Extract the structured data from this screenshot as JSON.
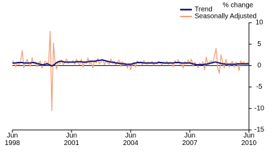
{
  "chart_data": {
    "type": "line",
    "y_label": "% change",
    "categories": [
      "Jun 1998",
      null,
      null,
      null,
      null,
      null,
      null,
      null,
      null,
      null,
      null,
      null,
      null,
      null,
      null,
      null,
      null,
      null,
      null,
      null,
      null,
      null,
      null,
      null,
      null,
      null,
      null,
      null,
      null,
      null,
      null,
      null,
      null,
      null,
      null,
      null,
      "Jun 2001",
      null,
      null,
      null,
      null,
      null,
      null,
      null,
      null,
      null,
      null,
      null,
      null,
      null,
      null,
      null,
      null,
      null,
      null,
      null,
      null,
      null,
      null,
      null,
      null,
      null,
      null,
      null,
      null,
      null,
      null,
      null,
      null,
      null,
      null,
      null,
      "Jun 2004",
      null,
      null,
      null,
      null,
      null,
      null,
      null,
      null,
      null,
      null,
      null,
      null,
      null,
      null,
      null,
      null,
      null,
      null,
      null,
      null,
      null,
      null,
      null,
      null,
      null,
      null,
      null,
      null,
      null,
      null,
      null,
      null,
      null,
      null,
      null,
      "Jun 2007",
      null,
      null,
      null,
      null,
      null,
      null,
      null,
      null,
      null,
      null,
      null,
      null,
      null,
      null,
      null,
      null,
      null,
      null,
      null,
      null,
      null,
      null,
      null,
      null,
      null,
      null,
      null,
      null,
      null,
      null,
      null,
      null,
      null,
      null,
      null,
      "Jun 2010"
    ],
    "series": [
      {
        "name": "Seasonally Adjusted",
        "color": "#f4a07a",
        "values": [
          1.2,
          0.5,
          -0.3,
          0.8,
          0.2,
          1.0,
          3.5,
          -0.5,
          0.6,
          1.5,
          0.3,
          -0.2,
          1.8,
          0.4,
          0.9,
          -0.3,
          0.5,
          1.1,
          -0.6,
          0.2,
          1.0,
          0.8,
          0.1,
          8.0,
          -10.5,
          5.2,
          0.6,
          -0.8,
          1.0,
          0.4,
          1.3,
          0.2,
          0.8,
          1.6,
          0.5,
          0.9,
          0.7,
          1.2,
          0.3,
          1.5,
          0.6,
          0.2,
          1.4,
          -0.4,
          1.0,
          0.5,
          1.8,
          0.3,
          0.9,
          -0.5,
          1.2,
          0.6,
          1.7,
          0.4,
          0.8,
          1.5,
          0.2,
          1.1,
          0.7,
          0.3,
          1.6,
          0.5,
          1.0,
          0.2,
          0.8,
          1.3,
          -0.2,
          0.9,
          0.4,
          0.6,
          -0.6,
          0.5,
          -1.0,
          0.3,
          0.8,
          -0.4,
          1.1,
          0.5,
          0.9,
          0.2,
          1.2,
          0.6,
          0.3,
          0.8,
          0.5,
          1.0,
          0.1,
          0.7,
          0.4,
          1.1,
          0.6,
          0.2,
          0.9,
          0.5,
          1.0,
          0.3,
          0.8,
          0.6,
          -0.3,
          1.2,
          0.5,
          1.4,
          0.2,
          0.7,
          -0.6,
          0.9,
          0.4,
          1.3,
          0.6,
          1.5,
          -0.2,
          0.8,
          0.3,
          -0.5,
          0.6,
          0.2,
          0.9,
          -1.0,
          2.0,
          0.3,
          0.7,
          1.2,
          0.5,
          2.2,
          4.0,
          -0.5,
          -1.8,
          2.5,
          0.8,
          -0.5,
          1.5,
          0.2,
          -0.3,
          0.6,
          1.0,
          -0.4,
          0.8,
          0.3,
          -1.2,
          1.1,
          0.5,
          0.9,
          0.2,
          0.7,
          0.4
        ]
      },
      {
        "name": "Trend",
        "color": "#1a1a7a",
        "values": [
          0.6,
          0.6,
          0.6,
          0.7,
          0.7,
          0.7,
          0.7,
          0.6,
          0.6,
          0.6,
          0.6,
          0.6,
          0.7,
          0.7,
          0.6,
          0.5,
          0.4,
          0.3,
          0.2,
          0.2,
          0.3,
          0.4,
          0.3,
          0.1,
          -0.1,
          0.1,
          0.4,
          0.7,
          0.9,
          1.0,
          1.0,
          0.9,
          0.8,
          0.8,
          0.8,
          0.8,
          0.8,
          0.8,
          0.8,
          0.9,
          0.9,
          0.9,
          0.9,
          0.8,
          0.8,
          0.8,
          0.9,
          1.0,
          1.0,
          1.0,
          1.0,
          1.1,
          1.2,
          1.2,
          1.3,
          1.3,
          1.2,
          1.1,
          1.0,
          0.9,
          0.8,
          0.8,
          0.7,
          0.6,
          0.6,
          0.5,
          0.5,
          0.4,
          0.4,
          0.3,
          0.3,
          0.3,
          0.3,
          0.4,
          0.5,
          0.6,
          0.7,
          0.7,
          0.7,
          0.7,
          0.6,
          0.6,
          0.6,
          0.6,
          0.6,
          0.6,
          0.6,
          0.6,
          0.6,
          0.7,
          0.7,
          0.7,
          0.6,
          0.6,
          0.6,
          0.6,
          0.6,
          0.6,
          0.6,
          0.7,
          0.7,
          0.7,
          0.7,
          0.6,
          0.6,
          0.6,
          0.6,
          0.6,
          0.6,
          0.5,
          0.4,
          0.3,
          0.2,
          0.2,
          0.2,
          0.2,
          0.2,
          0.3,
          0.3,
          0.4,
          0.5,
          0.6,
          0.7,
          0.8,
          0.8,
          0.7,
          0.6,
          0.5,
          0.4,
          0.4,
          0.3,
          0.3,
          0.3,
          0.3,
          0.3,
          0.3,
          0.3,
          0.4,
          0.4,
          0.4,
          0.4,
          0.4,
          0.4,
          0.4,
          0.4
        ]
      }
    ],
    "ylim": [
      -15,
      10
    ],
    "yticks": [
      10,
      5,
      0,
      -5,
      -10,
      -15
    ],
    "legend": "top-right"
  }
}
